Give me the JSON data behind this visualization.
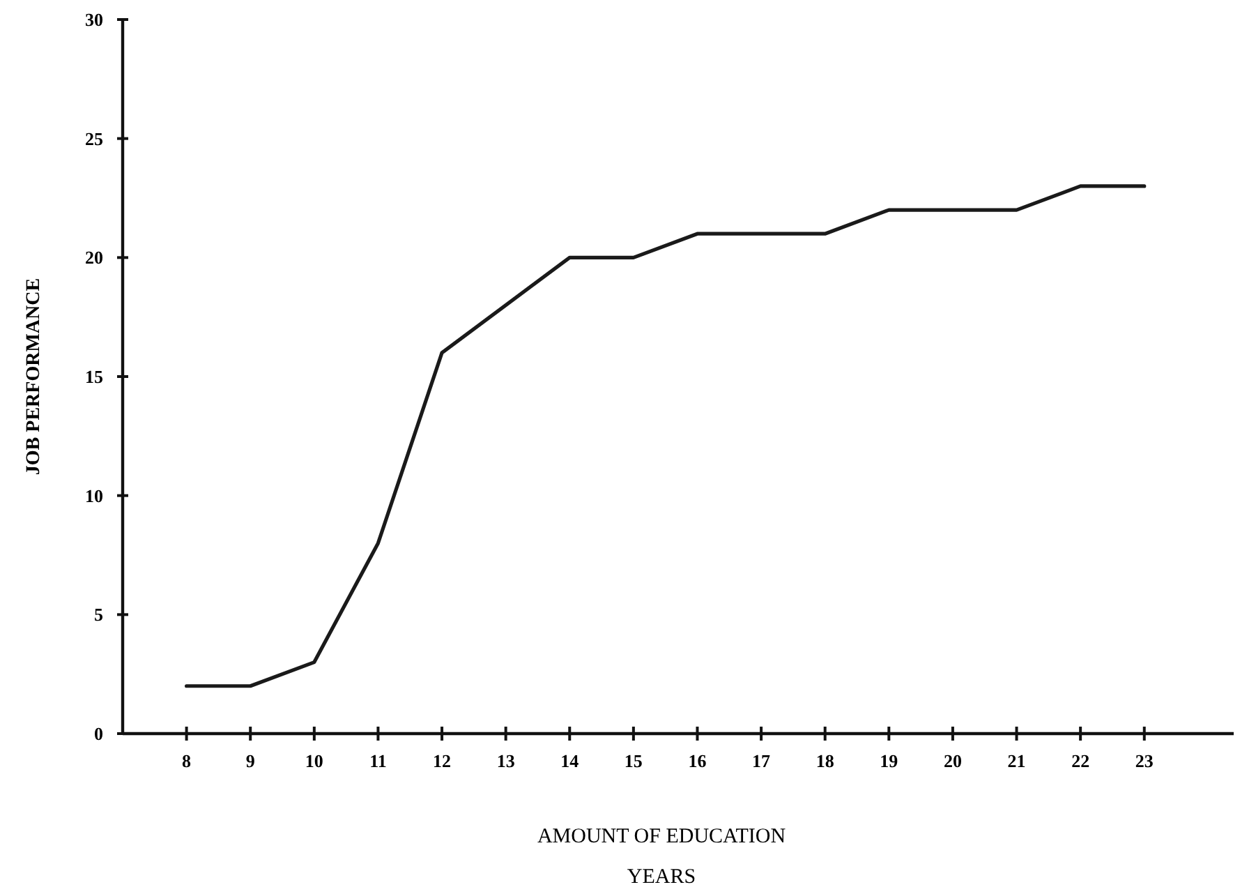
{
  "chart_data": {
    "type": "line",
    "xlabel": "AMOUNT OF EDUCATION",
    "annotations": [
      "YEARS"
    ],
    "ylabel": "JOB PERFORMANCE",
    "x": [
      8,
      9,
      10,
      11,
      12,
      13,
      14,
      15,
      16,
      17,
      18,
      19,
      20,
      21,
      22,
      23
    ],
    "series": [
      {
        "color": "#1a1a1a",
        "values": [
          2,
          2,
          3,
          8,
          16,
          18,
          20,
          20,
          21,
          21,
          21,
          22,
          22,
          22,
          23,
          23
        ]
      }
    ],
    "xlim": [
      7,
      24.4
    ],
    "xticks": [
      8,
      9,
      10,
      11,
      12,
      13,
      14,
      15,
      16,
      17,
      18,
      19,
      20,
      21,
      22,
      23
    ],
    "ylim": [
      0,
      30
    ],
    "yticks": [
      0,
      5,
      10,
      15,
      20,
      25,
      30
    ],
    "grid": false,
    "marker": "none",
    "line_style": "solid"
  }
}
